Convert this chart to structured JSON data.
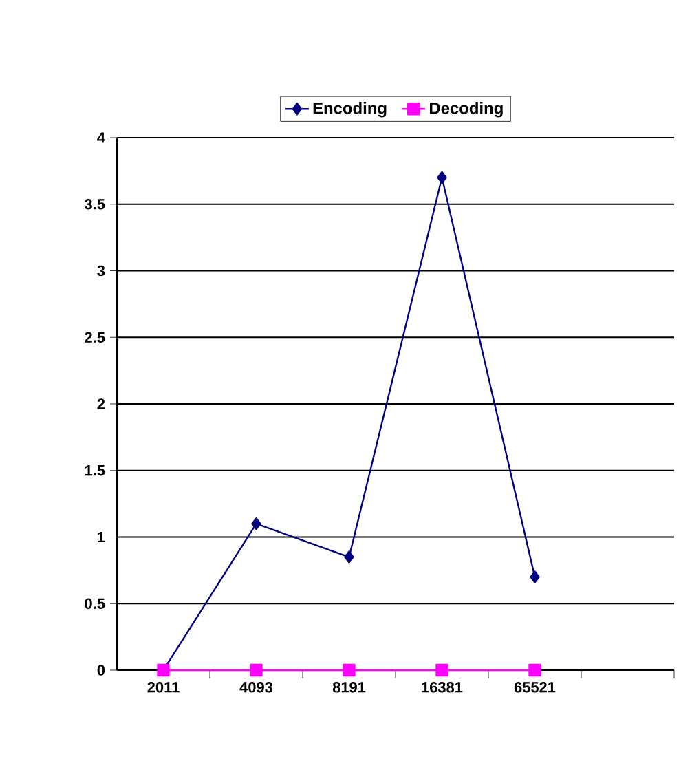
{
  "chart_data": {
    "type": "line",
    "categories": [
      "2011",
      "4093",
      "8191",
      "16381",
      "65521",
      null
    ],
    "series": [
      {
        "name": "Encoding",
        "color": "#000080",
        "marker": "diamond",
        "values": [
          0,
          1.1,
          0.85,
          3.7,
          0.7,
          null
        ]
      },
      {
        "name": "Decoding",
        "color": "#ff00ff",
        "marker": "square",
        "values": [
          0,
          0,
          0,
          0,
          0,
          null
        ]
      }
    ],
    "ylim": [
      0,
      4
    ],
    "yticks": [
      0,
      0.5,
      1,
      1.5,
      2,
      2.5,
      3,
      3.5,
      4
    ],
    "grid": "y",
    "legend": "top",
    "line_style": "solid"
  }
}
